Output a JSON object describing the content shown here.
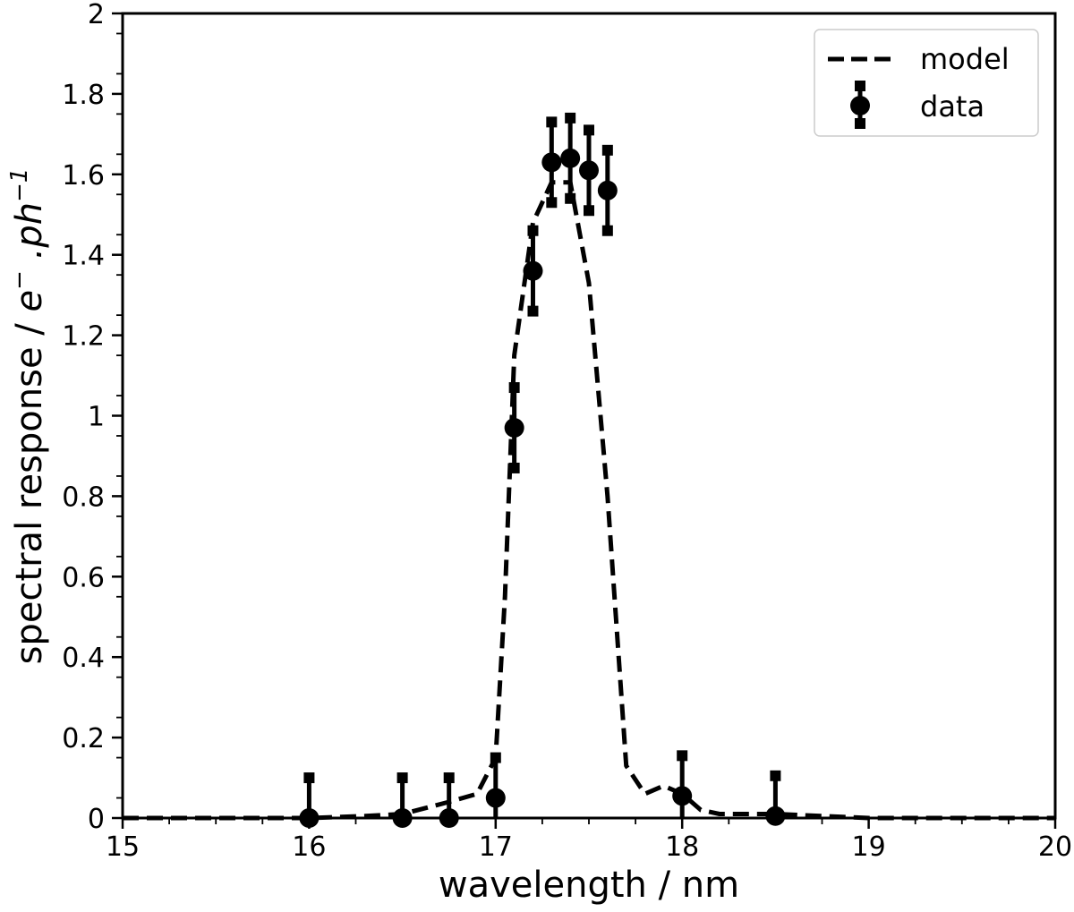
{
  "chart_data": {
    "type": "line",
    "xlabel": "wavelength / nm",
    "ylabel": "spectral response / e⁻.ph⁻¹",
    "ylabel_parts": {
      "prefix": "spectral response / ",
      "unit_e": "e",
      "unit_e_sup": "−",
      "unit_mid": " .",
      "unit_ph": "ph",
      "unit_ph_sup": "−1"
    },
    "xlim": [
      15,
      20
    ],
    "ylim": [
      0,
      2
    ],
    "x_ticks": [
      "15",
      "16",
      "17",
      "18",
      "19",
      "20"
    ],
    "x_tick_values": [
      15,
      16,
      17,
      18,
      19,
      20
    ],
    "y_ticks": [
      "0",
      "0.2",
      "0.4",
      "0.6",
      "0.8",
      "1",
      "1.2",
      "1.4",
      "1.6",
      "1.8",
      "2"
    ],
    "y_tick_values": [
      0,
      0.2,
      0.4,
      0.6,
      0.8,
      1.0,
      1.2,
      1.4,
      1.6,
      1.8,
      2.0
    ],
    "grid": false,
    "legend_position": "top-right",
    "series": [
      {
        "name": "model",
        "style": "dashed-line",
        "color": "#000000",
        "x": [
          15.0,
          15.5,
          16.0,
          16.3,
          16.5,
          16.75,
          16.9,
          17.0,
          17.05,
          17.1,
          17.2,
          17.3,
          17.4,
          17.5,
          17.6,
          17.7,
          17.8,
          17.9,
          18.0,
          18.1,
          18.2,
          18.5,
          19.0,
          20.0
        ],
        "y": [
          0.0,
          0.0,
          0.0,
          0.005,
          0.01,
          0.04,
          0.06,
          0.15,
          0.55,
          1.15,
          1.48,
          1.58,
          1.58,
          1.33,
          0.8,
          0.13,
          0.06,
          0.08,
          0.06,
          0.02,
          0.01,
          0.01,
          0.0,
          0.0
        ]
      },
      {
        "name": "data",
        "style": "errorbar-points",
        "color": "#000000",
        "x": [
          16.0,
          16.5,
          16.75,
          17.0,
          17.1,
          17.2,
          17.3,
          17.4,
          17.5,
          17.6,
          18.0,
          18.5
        ],
        "y": [
          0.0,
          0.0,
          0.0,
          0.05,
          0.97,
          1.36,
          1.63,
          1.64,
          1.61,
          1.56,
          0.055,
          0.005
        ],
        "yerr": [
          0.1,
          0.1,
          0.1,
          0.1,
          0.1,
          0.1,
          0.1,
          0.1,
          0.1,
          0.1,
          0.1,
          0.1
        ]
      }
    ]
  }
}
